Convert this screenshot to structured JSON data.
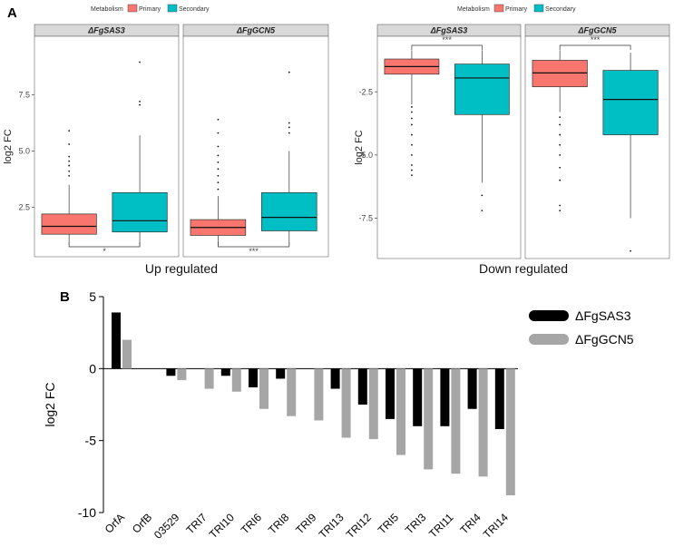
{
  "figure": {
    "panel_a_label": "A",
    "panel_b_label": "B"
  },
  "chart_data": [
    {
      "id": "up",
      "type": "box",
      "caption": "Up regulated",
      "ylabel": "log2 FC",
      "ylim": [
        0.3,
        10.1
      ],
      "yticks": [
        2.5,
        5.0,
        7.5
      ],
      "ytick_labels": [
        "2.5",
        "5.0",
        "7.5"
      ],
      "legend": {
        "title": "Metabolism",
        "entries": [
          "Primary",
          "Secondary"
        ],
        "colors": [
          "#F8766D",
          "#00BFC4"
        ]
      },
      "facets": [
        {
          "label": "ΔFgSAS3",
          "significance": "*",
          "boxes": [
            {
              "group": "Primary",
              "low": 0.8,
              "q1": 1.3,
              "median": 1.65,
              "q3": 2.2,
              "high": 3.5,
              "outliers": [
                3.9,
                4.1,
                4.35,
                4.55,
                4.75,
                5.3,
                5.9
              ]
            },
            {
              "group": "Secondary",
              "low": 0.8,
              "q1": 1.4,
              "median": 1.9,
              "q3": 3.15,
              "high": 5.7,
              "outliers": [
                7.05,
                7.2,
                8.95
              ]
            }
          ]
        },
        {
          "label": "ΔFgGCN5",
          "significance": "***",
          "boxes": [
            {
              "group": "Primary",
              "low": 0.8,
              "q1": 1.25,
              "median": 1.6,
              "q3": 1.95,
              "high": 3.0,
              "outliers": [
                3.3,
                3.6,
                3.9,
                4.2,
                4.5,
                4.8,
                5.2,
                5.8,
                6.4
              ]
            },
            {
              "group": "Secondary",
              "low": 0.8,
              "q1": 1.45,
              "median": 2.05,
              "q3": 3.15,
              "high": 5.0,
              "outliers": [
                5.8,
                6.05,
                6.25,
                8.5
              ]
            }
          ]
        }
      ]
    },
    {
      "id": "down",
      "type": "box",
      "caption": "Down regulated",
      "ylabel": "log2 FC",
      "ylim": [
        -9.1,
        -0.3
      ],
      "yticks": [
        -2.5,
        -5.0,
        -7.5
      ],
      "ytick_labels": [
        "-2.5",
        "-5.0",
        "-7.5"
      ],
      "legend": {
        "title": "Metabolism",
        "entries": [
          "Primary",
          "Secondary"
        ],
        "colors": [
          "#F8766D",
          "#00BFC4"
        ]
      },
      "facets": [
        {
          "label": "ΔFgSAS3",
          "significance": "***",
          "boxes": [
            {
              "group": "Primary",
              "low": -3.0,
              "q1": -1.8,
              "median": -1.5,
              "q3": -1.2,
              "high": -0.85,
              "outliers": [
                -3.1,
                -3.3,
                -3.55,
                -3.8,
                -4.2,
                -4.6,
                -5.0,
                -5.4,
                -5.6,
                -5.8
              ]
            },
            {
              "group": "Secondary",
              "low": -6.1,
              "q1": -3.4,
              "median": -1.95,
              "q3": -1.4,
              "high": -0.85,
              "outliers": [
                -6.6,
                -7.2
              ]
            }
          ]
        },
        {
          "label": "ΔFgGCN5",
          "significance": "***",
          "boxes": [
            {
              "group": "Primary",
              "low": -3.3,
              "q1": -2.3,
              "median": -1.75,
              "q3": -1.25,
              "high": -0.85,
              "outliers": [
                -3.5,
                -3.8,
                -4.2,
                -4.6,
                -5.0,
                -5.5,
                -6.0,
                -7.0,
                -7.2
              ]
            },
            {
              "group": "Secondary",
              "low": -7.5,
              "q1": -4.2,
              "median": -2.8,
              "q3": -1.65,
              "high": -0.95,
              "outliers": [
                -8.8
              ]
            }
          ]
        }
      ]
    },
    {
      "id": "bars",
      "type": "bar",
      "ylabel": "log2 FC",
      "ylim": [
        -10,
        5
      ],
      "yticks": [
        5,
        0,
        -5,
        -10
      ],
      "ytick_labels": [
        "5",
        "0",
        "-5",
        "-10"
      ],
      "categories": [
        "OrfA",
        "OrfB",
        "03529",
        "TRI7",
        "TRI10",
        "TRI6",
        "TRI8",
        "TRI9",
        "TRI13",
        "TRI12",
        "TRI5",
        "TRI3",
        "TRI11",
        "TRI4",
        "TRI14"
      ],
      "series": [
        {
          "name": "ΔFgSAS3",
          "color": "#000000",
          "values": [
            3.9,
            0,
            -0.5,
            0,
            -0.5,
            -1.3,
            -0.7,
            0,
            -1.4,
            -2.5,
            -3.5,
            -4.0,
            -4.0,
            -2.8,
            -4.2
          ]
        },
        {
          "name": "ΔFgGCN5",
          "color": "#A6A6A6",
          "values": [
            2.0,
            0,
            -0.8,
            -1.4,
            -1.6,
            -2.8,
            -3.3,
            -3.6,
            -4.8,
            -4.9,
            -6.0,
            -7.0,
            -7.3,
            -7.5,
            -8.8
          ]
        }
      ]
    }
  ]
}
